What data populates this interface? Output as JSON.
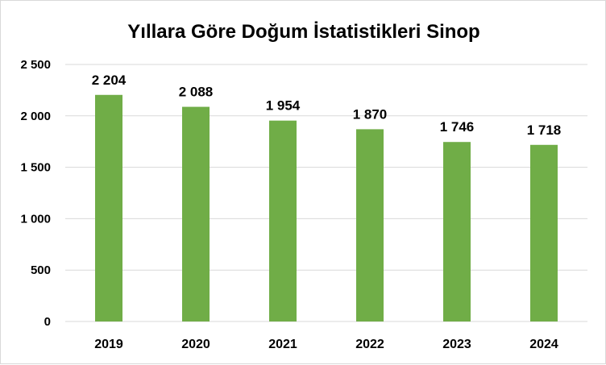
{
  "chart_data": {
    "type": "bar",
    "title": "Yıllara Göre Doğum İstatistikleri Sinop",
    "categories": [
      "2019",
      "2020",
      "2021",
      "2022",
      "2023",
      "2024"
    ],
    "values": [
      2204,
      2088,
      1954,
      1870,
      1746,
      1718
    ],
    "data_labels": [
      "2 204",
      "2 088",
      "1 954",
      "1 870",
      "1 746",
      "1 718"
    ],
    "xlabel": "",
    "ylabel": "",
    "ylim": [
      0,
      2500
    ],
    "yticks": [
      0,
      500,
      1000,
      1500,
      2000,
      2500
    ],
    "ytick_labels": [
      "0",
      "500",
      "1 000",
      "1 500",
      "2 000",
      "2 500"
    ],
    "grid": true,
    "legend": "none",
    "bar_color": "#70ad47"
  }
}
